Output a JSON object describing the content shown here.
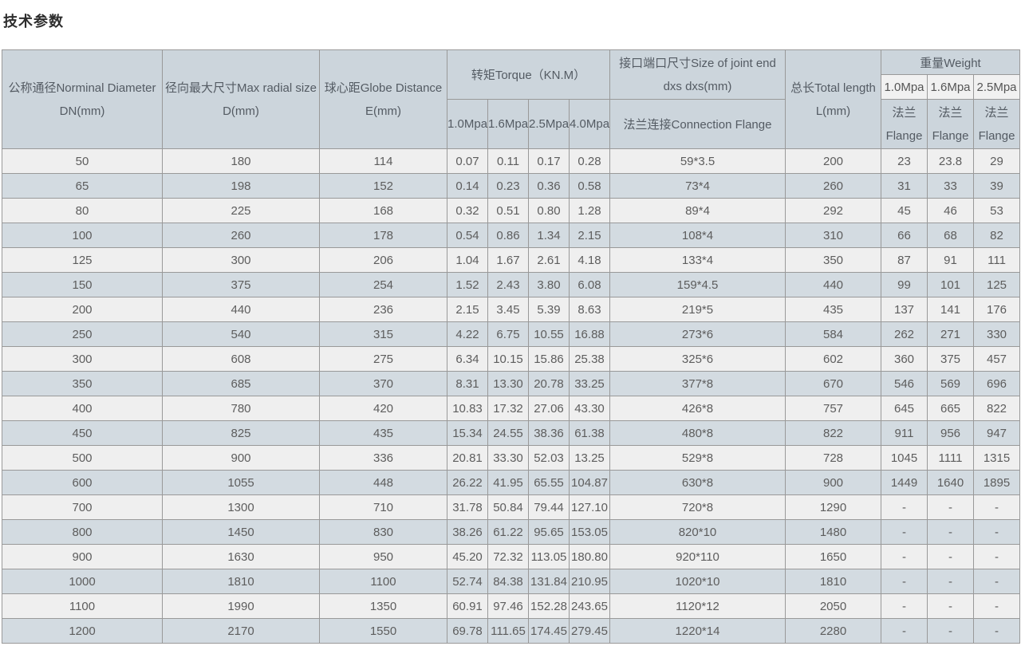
{
  "page": {
    "title": "技术参数"
  },
  "colors": {
    "header_bg": "#ccd5dc",
    "header_subcell_bg": "#f1f1f1",
    "row_stripe_gray": "#efefef",
    "row_stripe_blue": "#d3dbe1",
    "border": "#999999",
    "text": "#5d5d5d"
  },
  "table": {
    "header": {
      "dn": [
        "公称通径Norminal Diameter",
        "DN(mm)"
      ],
      "d": [
        "径向最大尺寸Max radial size",
        "D(mm)"
      ],
      "e": [
        "球心距Globe Distance",
        "E(mm)"
      ],
      "torque_title": "转矩Torque（KN.M）",
      "torque_cols": [
        "1.0Mpa",
        "1.6Mpa",
        "2.5Mpa",
        "4.0Mpa"
      ],
      "joint_title": [
        "接口端口尺寸Size of joint end",
        "dxs dxs(mm)"
      ],
      "joint_sub": "法兰连接Connection Flange",
      "total": [
        "总长Total length",
        "L(mm)"
      ],
      "weight_title": "重量Weight",
      "weight_cols": [
        "1.0Mpa",
        "1.6Mpa",
        "2.5Mpa"
      ],
      "weight_sub": [
        "法兰",
        "Flange"
      ]
    },
    "rows": [
      [
        "50",
        "180",
        "114",
        "0.07",
        "0.11",
        "0.17",
        "0.28",
        "59*3.5",
        "200",
        "23",
        "23.8",
        "29"
      ],
      [
        "65",
        "198",
        "152",
        "0.14",
        "0.23",
        "0.36",
        "0.58",
        "73*4",
        "260",
        "31",
        "33",
        "39"
      ],
      [
        "80",
        "225",
        "168",
        "0.32",
        "0.51",
        "0.80",
        "1.28",
        "89*4",
        "292",
        "45",
        "46",
        "53"
      ],
      [
        "100",
        "260",
        "178",
        "0.54",
        "0.86",
        "1.34",
        "2.15",
        "108*4",
        "310",
        "66",
        "68",
        "82"
      ],
      [
        "125",
        "300",
        "206",
        "1.04",
        "1.67",
        "2.61",
        "4.18",
        "133*4",
        "350",
        "87",
        "91",
        "111"
      ],
      [
        "150",
        "375",
        "254",
        "1.52",
        "2.43",
        "3.80",
        "6.08",
        "159*4.5",
        "440",
        "99",
        "101",
        "125"
      ],
      [
        "200",
        "440",
        "236",
        "2.15",
        "3.45",
        "5.39",
        "8.63",
        "219*5",
        "435",
        "137",
        "141",
        "176"
      ],
      [
        "250",
        "540",
        "315",
        "4.22",
        "6.75",
        "10.55",
        "16.88",
        "273*6",
        "584",
        "262",
        "271",
        "330"
      ],
      [
        "300",
        "608",
        "275",
        "6.34",
        "10.15",
        "15.86",
        "25.38",
        "325*6",
        "602",
        "360",
        "375",
        "457"
      ],
      [
        "350",
        "685",
        "370",
        "8.31",
        "13.30",
        "20.78",
        "33.25",
        "377*8",
        "670",
        "546",
        "569",
        "696"
      ],
      [
        "400",
        "780",
        "420",
        "10.83",
        "17.32",
        "27.06",
        "43.30",
        "426*8",
        "757",
        "645",
        "665",
        "822"
      ],
      [
        "450",
        "825",
        "435",
        "15.34",
        "24.55",
        "38.36",
        "61.38",
        "480*8",
        "822",
        "911",
        "956",
        "947"
      ],
      [
        "500",
        "900",
        "336",
        "20.81",
        "33.30",
        "52.03",
        "13.25",
        "529*8",
        "728",
        "1045",
        "1111",
        "1315"
      ],
      [
        "600",
        "1055",
        "448",
        "26.22",
        "41.95",
        "65.55",
        "104.87",
        "630*8",
        "900",
        "1449",
        "1640",
        "1895"
      ],
      [
        "700",
        "1300",
        "710",
        "31.78",
        "50.84",
        "79.44",
        "127.10",
        "720*8",
        "1290",
        "-",
        "-",
        "-"
      ],
      [
        "800",
        "1450",
        "830",
        "38.26",
        "61.22",
        "95.65",
        "153.05",
        "820*10",
        "1480",
        "-",
        "-",
        "-"
      ],
      [
        "900",
        "1630",
        "950",
        "45.20",
        "72.32",
        "113.05",
        "180.80",
        "920*110",
        "1650",
        "-",
        "-",
        "-"
      ],
      [
        "1000",
        "1810",
        "1100",
        "52.74",
        "84.38",
        "131.84",
        "210.95",
        "1020*10",
        "1810",
        "-",
        "-",
        "-"
      ],
      [
        "1100",
        "1990",
        "1350",
        "60.91",
        "97.46",
        "152.28",
        "243.65",
        "1120*12",
        "2050",
        "-",
        "-",
        "-"
      ],
      [
        "1200",
        "2170",
        "1550",
        "69.78",
        "111.65",
        "174.45",
        "279.45",
        "1220*14",
        "2280",
        "-",
        "-",
        "-"
      ]
    ]
  }
}
